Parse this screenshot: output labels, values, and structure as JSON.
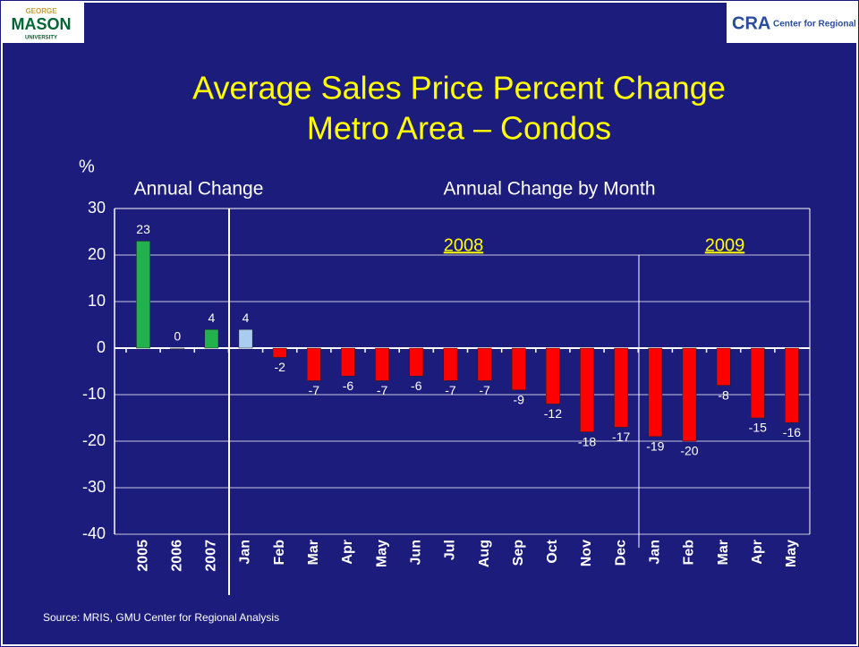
{
  "logos": {
    "left": [
      "GEORGE",
      "MASON",
      "UNIVERSITY"
    ],
    "right": [
      "CRA",
      "Center for Regional Analysis"
    ]
  },
  "chart_data": {
    "type": "bar",
    "title": [
      "Average Sales Price Percent Change",
      "Metro Area – Condos"
    ],
    "y_label": "%",
    "annotations": [
      "Annual Change",
      "Annual Change by Month",
      "2008",
      "2009"
    ],
    "source": "Source: MRIS, GMU Center for Regional Analysis",
    "categories": [
      "2005",
      "2006",
      "2007",
      "Jan",
      "Feb",
      "Mar",
      "Apr",
      "May",
      "Jun",
      "Jul",
      "Aug",
      "Sep",
      "Oct",
      "Nov",
      "Dec",
      "Jan",
      "Feb",
      "Mar",
      "Apr",
      "May"
    ],
    "values": [
      23,
      0,
      4,
      4,
      -2,
      -7,
      -6,
      -7,
      -6,
      -7,
      -7,
      -9,
      -12,
      -18,
      -17,
      -19,
      -20,
      -8,
      -15,
      -16
    ],
    "colors": [
      "#22b14c",
      "#e8eef8",
      "#22b14c",
      "#a9ccf0",
      "#ff0000",
      "#ff0000",
      "#ff0000",
      "#ff0000",
      "#ff0000",
      "#ff0000",
      "#ff0000",
      "#ff0000",
      "#ff0000",
      "#ff0000",
      "#ff0000",
      "#ff0000",
      "#ff0000",
      "#ff0000",
      "#ff0000",
      "#ff0000"
    ],
    "ylim": [
      -40,
      30
    ],
    "yticks": [
      -40,
      -30,
      -20,
      -10,
      0,
      10,
      20,
      30
    ],
    "grid": true
  }
}
